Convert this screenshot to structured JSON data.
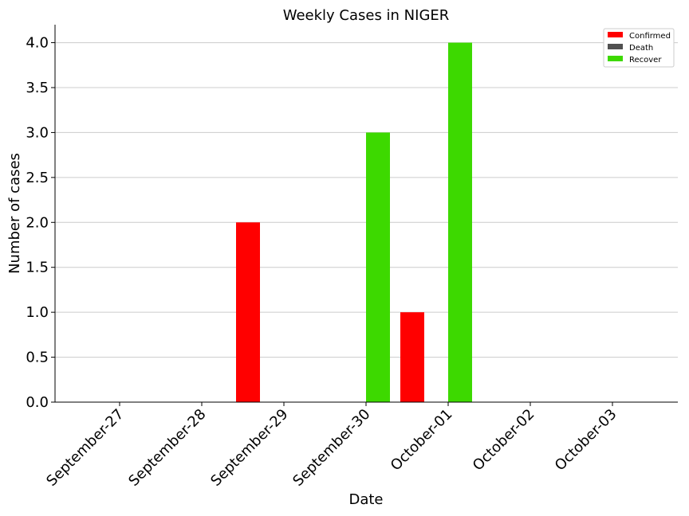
{
  "chart_data": {
    "type": "bar",
    "title": "Weekly Cases in NIGER",
    "xlabel": "Date",
    "ylabel": "Number of cases",
    "categories": [
      "September-27",
      "September-28",
      "September-29",
      "September-30",
      "October-01",
      "October-02",
      "October-03"
    ],
    "series": [
      {
        "name": "Confirmed",
        "color": "#ff0000",
        "values": [
          0,
          0,
          2,
          0,
          1,
          0,
          0
        ]
      },
      {
        "name": "Death",
        "color": "#505050",
        "values": [
          0,
          0,
          0,
          0,
          0,
          0,
          0
        ]
      },
      {
        "name": "Recover",
        "color": "#3dd900",
        "values": [
          0,
          0,
          0,
          3,
          4,
          0,
          0
        ]
      }
    ],
    "ylim": [
      0,
      4.2
    ],
    "yticks": [
      "0.0",
      "0.5",
      "1.0",
      "1.5",
      "2.0",
      "2.5",
      "3.0",
      "3.5",
      "4.0"
    ],
    "grid": "horizontal",
    "legend_position": "top-right"
  }
}
